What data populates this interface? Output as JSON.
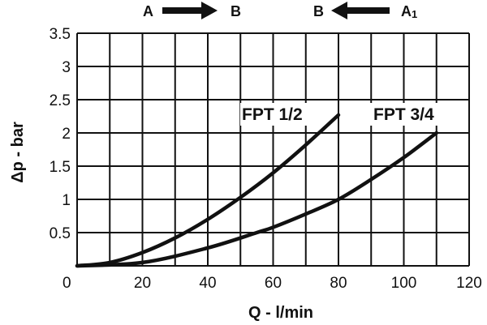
{
  "flow_directions": [
    {
      "from": "A",
      "to": "B",
      "arrow": "right-arrow-icon"
    },
    {
      "from": "B",
      "to": "A",
      "to_subscript": "1",
      "arrow": "left-arrow-icon"
    }
  ],
  "chart_data": {
    "type": "line",
    "title": "",
    "xlabel": "Q - l/min",
    "ylabel": "Δp - bar",
    "xlim": [
      0,
      120
    ],
    "ylim": [
      0,
      3.5
    ],
    "xticks": [
      0,
      20,
      40,
      60,
      80,
      100,
      120
    ],
    "yticks": [
      0.5,
      1,
      1.5,
      2,
      2.5,
      3,
      3.5
    ],
    "x_minor_step": 10,
    "y_step": 0.5,
    "grid": true,
    "series": [
      {
        "name": "FPT 1/2",
        "x": [
          0,
          10,
          20,
          30,
          40,
          50,
          60,
          70,
          80
        ],
        "y": [
          0,
          0.05,
          0.2,
          0.42,
          0.7,
          1.03,
          1.4,
          1.82,
          2.27
        ]
      },
      {
        "name": "FPT 3/4",
        "x": [
          0,
          20,
          40,
          55,
          60,
          70,
          80,
          90,
          100,
          110
        ],
        "y": [
          0,
          0.05,
          0.27,
          0.5,
          0.58,
          0.78,
          1.0,
          1.3,
          1.63,
          2.0
        ]
      }
    ]
  }
}
